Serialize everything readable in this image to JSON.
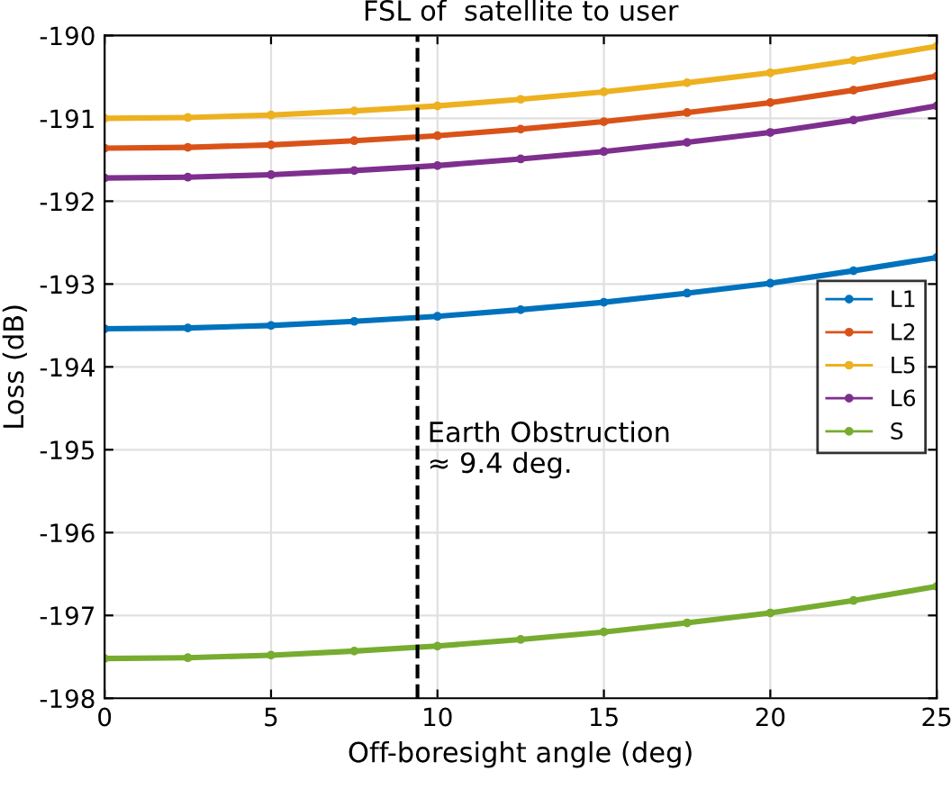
{
  "chart_data": {
    "type": "line",
    "title": "FSL of  satellite to user",
    "xlabel": "Off-boresight angle (deg)",
    "ylabel": "Loss (dB)",
    "x": [
      0,
      2.5,
      5,
      7.5,
      10,
      12.5,
      15,
      17.5,
      20,
      22.5,
      25
    ],
    "series": [
      {
        "name": "L1",
        "color": "#0072bd",
        "values": [
          -193.54,
          -193.53,
          -193.5,
          -193.45,
          -193.39,
          -193.31,
          -193.22,
          -193.11,
          -192.99,
          -192.84,
          -192.68
        ]
      },
      {
        "name": "L2",
        "color": "#d95319",
        "values": [
          -191.36,
          -191.35,
          -191.32,
          -191.27,
          -191.21,
          -191.13,
          -191.04,
          -190.93,
          -190.81,
          -190.66,
          -190.49
        ]
      },
      {
        "name": "L5",
        "color": "#edb120",
        "values": [
          -191.0,
          -190.99,
          -190.96,
          -190.91,
          -190.85,
          -190.77,
          -190.68,
          -190.57,
          -190.45,
          -190.3,
          -190.13
        ]
      },
      {
        "name": "L6",
        "color": "#7e2f8e",
        "values": [
          -191.72,
          -191.71,
          -191.68,
          -191.63,
          -191.57,
          -191.49,
          -191.4,
          -191.29,
          -191.17,
          -191.02,
          -190.85
        ]
      },
      {
        "name": "S",
        "color": "#77ac30",
        "values": [
          -197.52,
          -197.51,
          -197.48,
          -197.43,
          -197.37,
          -197.29,
          -197.2,
          -197.09,
          -196.97,
          -196.82,
          -196.65
        ]
      }
    ],
    "xlim": [
      0,
      25
    ],
    "xticks": [
      0,
      5,
      10,
      15,
      20,
      25
    ],
    "ylim": [
      -198,
      -190
    ],
    "yticks": [
      -198,
      -197,
      -196,
      -195,
      -194,
      -193,
      -192,
      -191,
      -190
    ],
    "ref_lines": [
      {
        "axis": "x",
        "value": 9.4,
        "label": "Earth Obstruction\n≈ 9.4 deg.",
        "color": "#000000",
        "line_style": "dashed"
      }
    ],
    "grid": true,
    "legend": "right",
    "marker": "circle"
  }
}
